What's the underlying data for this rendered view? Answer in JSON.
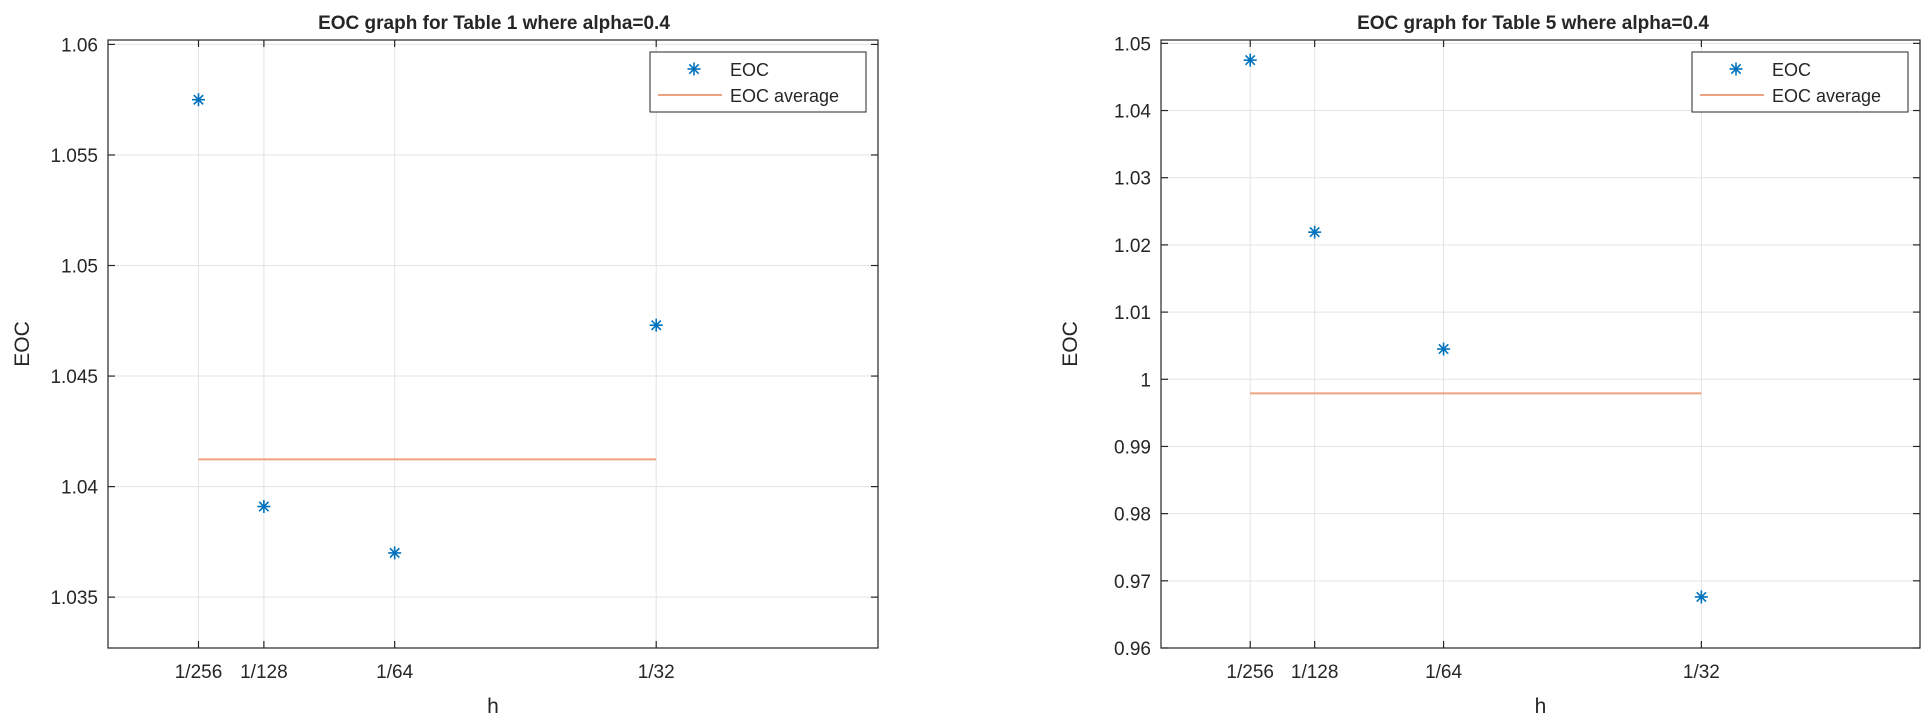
{
  "chart_data": [
    {
      "type": "scatter",
      "title": "EOC graph for Table 1 where alpha=0.4",
      "xlabel": "h",
      "ylabel": "EOC",
      "x_categories": [
        "1/256",
        "1/128",
        "1/64",
        "1/32"
      ],
      "x": [
        0.00390625,
        0.0078125,
        0.015625,
        0.03125
      ],
      "xlim": [
        -0.0015,
        0.0445
      ],
      "ylim": [
        1.0327,
        1.0602
      ],
      "yticks": [
        1.035,
        1.04,
        1.045,
        1.05,
        1.055,
        1.06
      ],
      "ytick_labels": [
        "1.035",
        "1.04",
        "1.045",
        "1.05",
        "1.055",
        "1.06"
      ],
      "grid": true,
      "legend_position": "top-right",
      "series": [
        {
          "name": "EOC",
          "kind": "marker-star",
          "color": "#0072BD",
          "values": [
            1.0575,
            1.0391,
            1.037,
            1.0473
          ]
        },
        {
          "name": "EOC average",
          "kind": "line",
          "color": "#EDA381",
          "values": [
            1.04123,
            1.04123,
            1.04123,
            1.04123
          ]
        }
      ]
    },
    {
      "type": "scatter",
      "title": "EOC graph for Table 5 where alpha=0.4",
      "xlabel": "h",
      "ylabel": "EOC",
      "x_categories": [
        "1/256",
        "1/128",
        "1/64",
        "1/32"
      ],
      "x": [
        0.00390625,
        0.0078125,
        0.015625,
        0.03125
      ],
      "xlim": [
        -0.0015,
        0.0445
      ],
      "ylim": [
        0.96,
        1.0505
      ],
      "yticks": [
        0.96,
        0.97,
        0.98,
        0.99,
        1.0,
        1.01,
        1.02,
        1.03,
        1.04,
        1.05
      ],
      "ytick_labels": [
        "0.96",
        "0.97",
        "0.98",
        "0.99",
        "1",
        "1.01",
        "1.02",
        "1.03",
        "1.04",
        "1.05"
      ],
      "grid": true,
      "legend_position": "top-right",
      "series": [
        {
          "name": "EOC",
          "kind": "marker-star",
          "color": "#0072BD",
          "values": [
            1.0475,
            1.0219,
            1.0045,
            0.9676
          ]
        },
        {
          "name": "EOC average",
          "kind": "line",
          "color": "#EDA381",
          "values": [
            0.9979,
            0.9979,
            0.9979,
            0.9979
          ]
        }
      ]
    }
  ]
}
